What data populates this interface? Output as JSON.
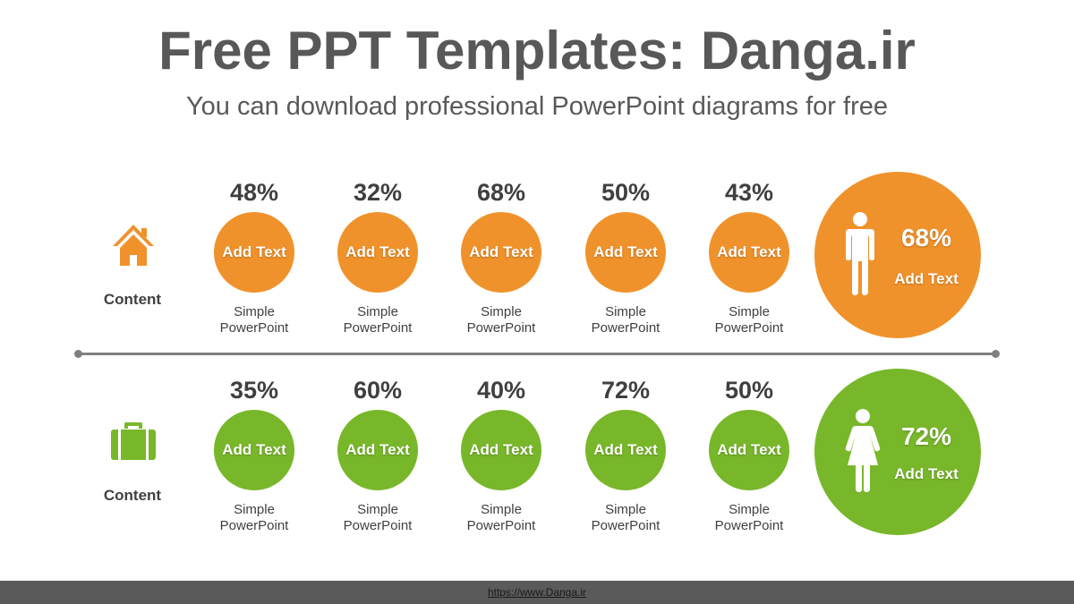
{
  "header": {
    "title": "Free PPT Templates: Danga.ir",
    "subtitle": "You can download professional PowerPoint diagrams for free"
  },
  "colors": {
    "orange": "#F0922B",
    "green": "#78B72A",
    "divider": "#7F7F7F",
    "footer": "#5A5A5A"
  },
  "rows": [
    {
      "icon": "house-icon",
      "label": "Content",
      "items": [
        {
          "percent": "48%",
          "circle_text": "Add Text",
          "caption_line1": "Simple",
          "caption_line2": "PowerPoint",
          "value": 48
        },
        {
          "percent": "32%",
          "circle_text": "Add Text",
          "caption_line1": "Simple",
          "caption_line2": "PowerPoint",
          "value": 32
        },
        {
          "percent": "68%",
          "circle_text": "Add Text",
          "caption_line1": "Simple",
          "caption_line2": "PowerPoint",
          "value": 68
        },
        {
          "percent": "50%",
          "circle_text": "Add Text",
          "caption_line1": "Simple",
          "caption_line2": "PowerPoint",
          "value": 50
        },
        {
          "percent": "43%",
          "circle_text": "Add Text",
          "caption_line1": "Simple",
          "caption_line2": "PowerPoint",
          "value": 43
        }
      ],
      "summary": {
        "icon": "male-figure-icon",
        "percent": "68%",
        "text": "Add Text"
      }
    },
    {
      "icon": "briefcase-icon",
      "label": "Content",
      "items": [
        {
          "percent": "35%",
          "circle_text": "Add Text",
          "caption_line1": "Simple",
          "caption_line2": "PowerPoint",
          "value": 35
        },
        {
          "percent": "60%",
          "circle_text": "Add Text",
          "caption_line1": "Simple",
          "caption_line2": "PowerPoint",
          "value": 60
        },
        {
          "percent": "40%",
          "circle_text": "Add Text",
          "caption_line1": "Simple",
          "caption_line2": "PowerPoint",
          "value": 40
        },
        {
          "percent": "72%",
          "circle_text": "Add Text",
          "caption_line1": "Simple",
          "caption_line2": "PowerPoint",
          "value": 72
        },
        {
          "percent": "50%",
          "circle_text": "Add Text",
          "caption_line1": "Simple",
          "caption_line2": "PowerPoint",
          "value": 50
        }
      ],
      "summary": {
        "icon": "female-figure-icon",
        "percent": "72%",
        "text": "Add Text"
      }
    }
  ],
  "footer": {
    "link_text": "https://www.Danga.ir"
  }
}
